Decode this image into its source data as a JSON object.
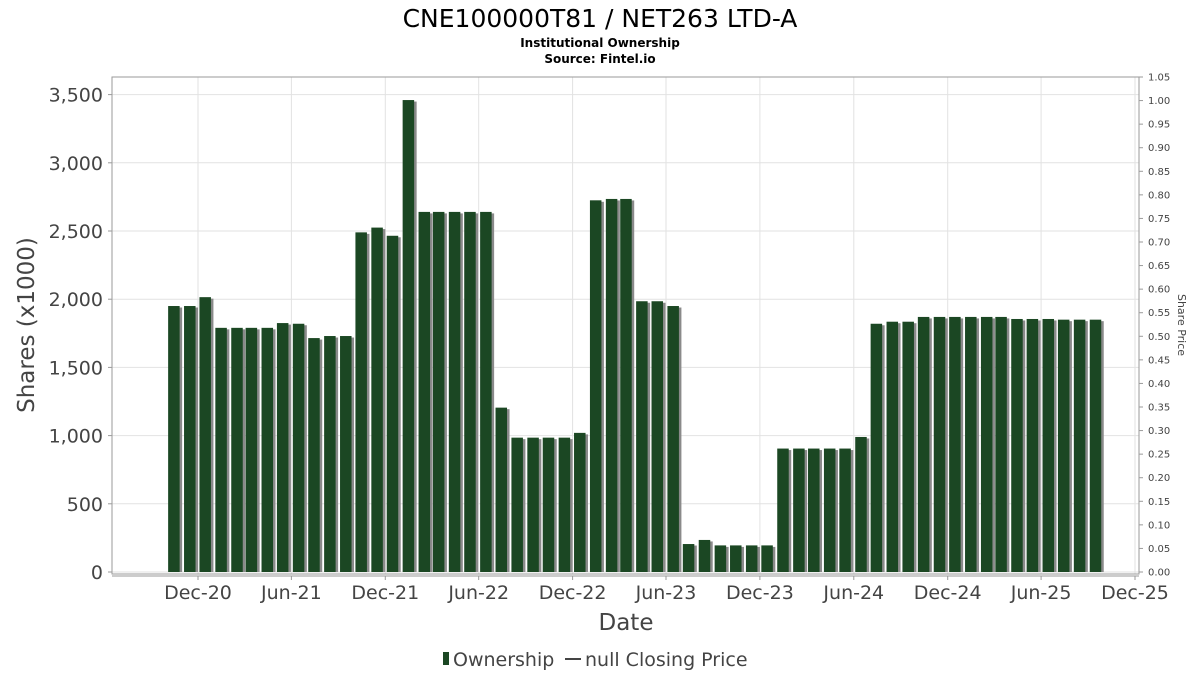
{
  "header": {
    "title": "CNE100000T81 / NET263 LTD-A",
    "subtitle": "Institutional Ownership",
    "source": "Source: Fintel.io"
  },
  "legend": {
    "ownership_label": "Ownership",
    "price_label": "null Closing Price"
  },
  "colors": {
    "bar": "#1b4723",
    "bar_shadow": "#8a8a8a",
    "grid": "#e2e2e2"
  },
  "chart_data": {
    "type": "bar",
    "title": "CNE100000T81 / NET263 LTD-A",
    "subtitle": "Institutional Ownership",
    "xlabel": "Date",
    "ylabel": "Shares (x1000)",
    "y2label": "Share Price",
    "ylim": [
      0,
      3600
    ],
    "y2lim": [
      0,
      1.05
    ],
    "grid": true,
    "legend_position": "bottom",
    "x_range": [
      "2020-06-01",
      "2025-12-31"
    ],
    "yticks": [
      0,
      500,
      1000,
      1500,
      2000,
      2500,
      3000,
      3500
    ],
    "yticklabels": [
      "0",
      "500",
      "1,000",
      "1,500",
      "2,000",
      "2,500",
      "3,000",
      "3,500"
    ],
    "y2ticks": [
      "0.00",
      "0.05",
      "0.10",
      "0.15",
      "0.20",
      "0.25",
      "0.30",
      "0.35",
      "0.40",
      "0.45",
      "0.50",
      "0.55",
      "0.60",
      "0.65",
      "0.70",
      "0.75",
      "0.80",
      "0.85",
      "0.90",
      "0.95",
      "1.00",
      "1.05"
    ],
    "xticks": [
      {
        "label": "Dec-20",
        "date": "2020-12-01"
      },
      {
        "label": "Jun-21",
        "date": "2021-06-01"
      },
      {
        "label": "Dec-21",
        "date": "2021-12-01"
      },
      {
        "label": "Jun-22",
        "date": "2022-06-01"
      },
      {
        "label": "Dec-22",
        "date": "2022-12-01"
      },
      {
        "label": "Jun-23",
        "date": "2023-06-01"
      },
      {
        "label": "Dec-23",
        "date": "2023-12-01"
      },
      {
        "label": "Jun-24",
        "date": "2024-06-01"
      },
      {
        "label": "Dec-24",
        "date": "2024-12-01"
      },
      {
        "label": "Jun-25",
        "date": "2025-06-01"
      },
      {
        "label": "Dec-25",
        "date": "2025-12-01"
      }
    ],
    "series": [
      {
        "name": "Ownership",
        "x": [
          "2020-10",
          "2020-11",
          "2020-12",
          "2021-01",
          "2021-02",
          "2021-03",
          "2021-04",
          "2021-05",
          "2021-06",
          "2021-07",
          "2021-08",
          "2021-09",
          "2021-10",
          "2021-11",
          "2021-12",
          "2022-01",
          "2022-02",
          "2022-03",
          "2022-04",
          "2022-05",
          "2022-06",
          "2022-07",
          "2022-08",
          "2022-09",
          "2022-10",
          "2022-11",
          "2022-12",
          "2023-01",
          "2023-02",
          "2023-03",
          "2023-04",
          "2023-05",
          "2023-06",
          "2023-07",
          "2023-08",
          "2023-09",
          "2023-10",
          "2023-11",
          "2023-12",
          "2024-01",
          "2024-02",
          "2024-03",
          "2024-04",
          "2024-05",
          "2024-06",
          "2024-07",
          "2024-08",
          "2024-09",
          "2024-10",
          "2024-11",
          "2024-12",
          "2025-01",
          "2025-02",
          "2025-03",
          "2025-04",
          "2025-05",
          "2025-06",
          "2025-07",
          "2025-08",
          "2025-09"
        ],
        "values": [
          1950,
          1950,
          2015,
          1790,
          1790,
          1790,
          1790,
          1825,
          1820,
          1715,
          1730,
          1730,
          2490,
          2525,
          2465,
          3460,
          2640,
          2640,
          2640,
          2640,
          2640,
          1205,
          985,
          985,
          985,
          985,
          1020,
          2725,
          2735,
          2735,
          1985,
          1985,
          1950,
          205,
          235,
          195,
          195,
          195,
          195,
          905,
          905,
          905,
          905,
          905,
          990,
          1820,
          1835,
          1835,
          1870,
          1870,
          1870,
          1870,
          1870,
          1870,
          1855,
          1855,
          1855,
          1850,
          1850,
          1850
        ]
      }
    ]
  }
}
